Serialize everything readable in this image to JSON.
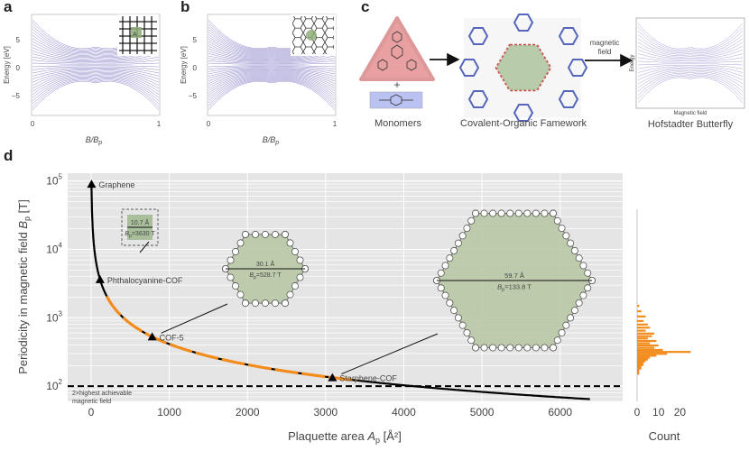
{
  "panels": {
    "a": {
      "letter": "a",
      "ylabel": "Energy [eV]",
      "xlabel": "B/B",
      "xlabel_sub": "p",
      "yticks": [
        "5",
        "0",
        "−5"
      ],
      "xticks": [
        "0",
        "1"
      ],
      "inset_label": "A"
    },
    "b": {
      "letter": "b",
      "ylabel": "Energy [eV]",
      "xlabel": "B/B",
      "xlabel_sub": "p",
      "yticks": [
        "5",
        "0",
        "−5"
      ],
      "xticks": [
        "0",
        "1"
      ]
    },
    "c": {
      "letter": "c",
      "monomers_caption": "Monomers",
      "cof_caption": "Covalent-Organic Famework",
      "hofstadter_caption": "Hofstadter Butterfly",
      "arrow_label_1": "magnetic",
      "arrow_label_2": "field",
      "mini_ylabel": "Energy",
      "mini_xlabel": "Magnetic field",
      "plus": "+"
    },
    "d": {
      "letter": "d"
    }
  },
  "chart_data": {
    "type": "line",
    "ylabel_main": "Periodicity in magnetic field",
    "ylabel_sym": "B",
    "ylabel_sub": "p",
    "ylabel_unit": "[T]",
    "xlabel_main": "Plaquette area",
    "xlabel_sym": "A",
    "xlabel_sub": "p",
    "xlabel_unit": "[Å²]",
    "ylog": true,
    "ylim": [
      60,
      130000
    ],
    "xlim": [
      -300,
      6800
    ],
    "xticks": [
      0,
      1000,
      2000,
      3000,
      4000,
      5000,
      6000
    ],
    "yticks": [
      {
        "v": 100,
        "base": "10",
        "exp": "2"
      },
      {
        "v": 1000,
        "base": "10",
        "exp": "3"
      },
      {
        "v": 10000,
        "base": "10",
        "exp": "4"
      },
      {
        "v": 100000,
        "base": "10",
        "exp": "5"
      }
    ],
    "grid": true,
    "curve_constant": 413000,
    "curve_xrange": [
      5,
      6400
    ],
    "highlight_xrange": [
      200,
      3400
    ],
    "threshold_y": 100,
    "threshold_label_1": "2×highest achievable",
    "threshold_label_2": "magnetic field",
    "points": [
      {
        "name": "Graphene",
        "x": 5,
        "y": 90000
      },
      {
        "name": "Phthalocyanine-COF",
        "x": 114,
        "y": 3630
      },
      {
        "name": "COF-5",
        "x": 781,
        "y": 528.7
      },
      {
        "name": "Starphene-COF",
        "x": 3087,
        "y": 133.8
      }
    ],
    "insets": [
      {
        "name": "Phthalocyanine-COF",
        "dist": "10.7 Å",
        "bp": "B",
        "bp_sub": "p",
        "bp_val": "=3630 T"
      },
      {
        "name": "COF-5",
        "dist": "30.1 Å",
        "bp": "B",
        "bp_sub": "p",
        "bp_val": "=528.7 T"
      },
      {
        "name": "Starphene-COF",
        "dist": "59.7 Å",
        "bp": "B",
        "bp_sub": "p",
        "bp_val": "=133.8 T"
      }
    ],
    "histogram": {
      "xlabel": "Count",
      "xticks": [
        0,
        10,
        20
      ],
      "xlim": [
        0,
        27
      ],
      "bins": [
        {
          "y": 1500,
          "c": 1
        },
        {
          "y": 1250,
          "c": 2
        },
        {
          "y": 1050,
          "c": 4
        },
        {
          "y": 900,
          "c": 3
        },
        {
          "y": 800,
          "c": 5
        },
        {
          "y": 720,
          "c": 6
        },
        {
          "y": 650,
          "c": 4
        },
        {
          "y": 590,
          "c": 8
        },
        {
          "y": 540,
          "c": 7
        },
        {
          "y": 500,
          "c": 5
        },
        {
          "y": 460,
          "c": 9
        },
        {
          "y": 425,
          "c": 6
        },
        {
          "y": 395,
          "c": 10
        },
        {
          "y": 365,
          "c": 8
        },
        {
          "y": 340,
          "c": 12
        },
        {
          "y": 318,
          "c": 25
        },
        {
          "y": 298,
          "c": 14
        },
        {
          "y": 280,
          "c": 9
        },
        {
          "y": 262,
          "c": 6
        },
        {
          "y": 246,
          "c": 5
        },
        {
          "y": 232,
          "c": 4
        },
        {
          "y": 218,
          "c": 3
        },
        {
          "y": 205,
          "c": 3
        },
        {
          "y": 193,
          "c": 2
        },
        {
          "y": 182,
          "c": 2
        },
        {
          "y": 172,
          "c": 1
        },
        {
          "y": 162,
          "c": 1
        },
        {
          "y": 153,
          "c": 1
        }
      ]
    }
  }
}
